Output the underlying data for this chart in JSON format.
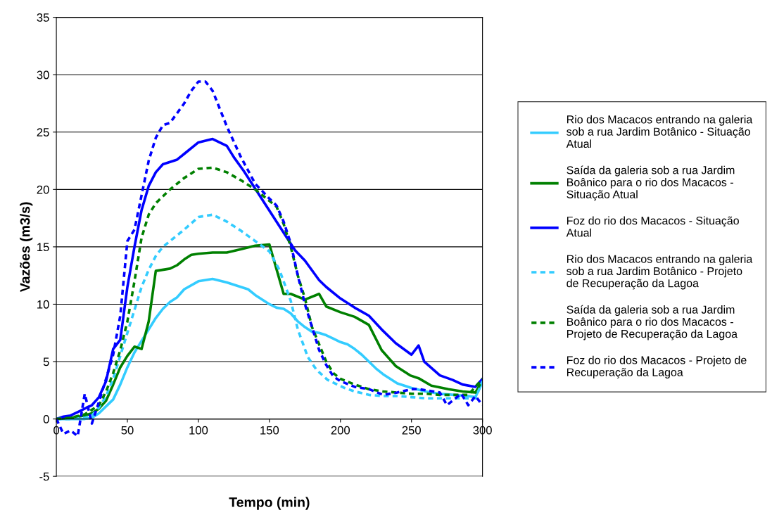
{
  "chart_data": {
    "type": "line",
    "xlabel": "Tempo (min)",
    "ylabel": "Vazões (m3/s)",
    "xlim": [
      0,
      300
    ],
    "ylim": [
      -5,
      35
    ],
    "xticks": [
      0,
      50,
      100,
      150,
      200,
      250,
      300
    ],
    "yticks": [
      -5,
      0,
      5,
      10,
      15,
      20,
      25,
      30,
      35
    ],
    "grid": "y",
    "legend": "right",
    "marker": "none",
    "series": [
      {
        "name": "Rio dos Macacos entrando na galeria sob a rua Jardim Botânico - Situação Atual",
        "color": "#33ccff",
        "line_style": "solid",
        "x": [
          0,
          10,
          20,
          25,
          30,
          35,
          40,
          45,
          50,
          55,
          60,
          65,
          70,
          75,
          80,
          85,
          90,
          100,
          110,
          120,
          130,
          135,
          140,
          150,
          155,
          160,
          165,
          170,
          175,
          180,
          185,
          190,
          195,
          200,
          205,
          210,
          215,
          220,
          225,
          230,
          235,
          240,
          250,
          260,
          270,
          280,
          290,
          295,
          300
        ],
        "values": [
          0,
          0,
          0,
          0.1,
          0.5,
          1.1,
          1.7,
          3,
          4.5,
          5.8,
          6.8,
          7.8,
          8.8,
          9.6,
          10.2,
          10.6,
          11.3,
          12,
          12.2,
          11.9,
          11.5,
          11.3,
          10.8,
          10,
          9.7,
          9.6,
          9.2,
          8.5,
          8,
          7.6,
          7.5,
          7.3,
          7,
          6.7,
          6.5,
          6.1,
          5.6,
          5,
          4.4,
          3.9,
          3.5,
          3.1,
          2.7,
          2.4,
          2.2,
          2.1,
          2,
          1.9,
          3.2
        ]
      },
      {
        "name": "Saída da galeria sob a rua Jardim Boânico para o rio dos Macacos - Situação Atual",
        "color": "#008000",
        "line_style": "solid",
        "x": [
          0,
          10,
          20,
          25,
          30,
          35,
          40,
          45,
          50,
          55,
          60,
          65,
          70,
          80,
          85,
          90,
          95,
          100,
          110,
          120,
          130,
          140,
          150,
          160,
          165,
          175,
          185,
          190,
          200,
          210,
          220,
          229,
          239,
          249,
          255,
          264,
          276,
          286,
          295,
          300
        ],
        "values": [
          0,
          0.1,
          0.3,
          0.5,
          0.9,
          1.6,
          3,
          4.5,
          5.5,
          6.3,
          6.1,
          8.5,
          12.9,
          13.1,
          13.4,
          13.9,
          14.3,
          14.4,
          14.5,
          14.5,
          14.8,
          15.1,
          15.2,
          10.9,
          10.9,
          10.4,
          10.9,
          9.8,
          9.3,
          8.9,
          8.2,
          6,
          4.6,
          3.8,
          3.55,
          2.9,
          2.6,
          2.4,
          2.3,
          3.4
        ]
      },
      {
        "name": "Foz do rio dos Macacos - Situação Atual",
        "color": "#0000ff",
        "line_style": "solid",
        "x": [
          0,
          5,
          10,
          15,
          20,
          25,
          30,
          35,
          40,
          45,
          50,
          55,
          60,
          65,
          70,
          75,
          85,
          90,
          100,
          110,
          120,
          125,
          132,
          168,
          175,
          185,
          190,
          200,
          210,
          220,
          229,
          239,
          250,
          255,
          259,
          270,
          279,
          286,
          295,
          300
        ],
        "values": [
          0,
          0.2,
          0.3,
          0.6,
          0.9,
          1.2,
          1.9,
          3.3,
          6.1,
          6.9,
          11.5,
          15,
          18.2,
          20.3,
          21.5,
          22.2,
          22.6,
          23.1,
          24.1,
          24.4,
          23.8,
          22.8,
          21.6,
          14.7,
          13.8,
          12.1,
          11.5,
          10.5,
          9.7,
          9,
          7.8,
          6.6,
          5.6,
          6.4,
          5,
          3.8,
          3.4,
          3,
          2.8,
          3.5
        ]
      },
      {
        "name": "Rio dos Macacos entrando na galeria sob a rua Jardim Botânico - Projeto de Recuperação da Lagoa",
        "color": "#33ccff",
        "line_style": "dashed",
        "x": [
          0,
          10,
          20,
          25,
          30,
          35,
          40,
          45,
          50,
          55,
          60,
          65,
          70,
          75,
          80,
          90,
          100,
          110,
          120,
          130,
          140,
          150,
          157,
          165,
          170,
          177,
          183,
          191,
          203,
          210,
          220,
          230,
          240,
          250,
          260,
          270,
          280,
          290,
          295,
          300
        ],
        "values": [
          0,
          0,
          0.1,
          0.3,
          1,
          2,
          3.5,
          5.5,
          7.5,
          9.5,
          11.5,
          13,
          14.2,
          15,
          15.5,
          16.5,
          17.6,
          17.8,
          17.2,
          16.4,
          15.5,
          14.6,
          13,
          10.3,
          7.8,
          5.4,
          4.3,
          3.4,
          2.7,
          2.4,
          2.1,
          2,
          2,
          1.9,
          1.8,
          1.8,
          1.8,
          1.8,
          1.8,
          3.3
        ]
      },
      {
        "name": "Saída da galeria sob a rua Jardim Boânico para o rio dos Macacos - Projeto de Recuperação da Lagoa",
        "color": "#008000",
        "line_style": "dashed",
        "x": [
          0,
          10,
          20,
          30,
          35,
          40,
          45,
          50,
          55,
          60,
          65,
          70,
          80,
          90,
          100,
          110,
          120,
          130,
          140,
          150,
          155,
          160,
          165,
          170,
          175,
          180,
          185,
          190,
          195,
          200,
          210,
          220,
          230,
          240,
          250,
          260,
          270,
          280,
          290,
          300
        ],
        "values": [
          0,
          0.1,
          0.4,
          1.2,
          2.4,
          4,
          6,
          8.5,
          12,
          15.8,
          17.8,
          18.8,
          20,
          21,
          21.8,
          21.9,
          21.5,
          20.8,
          20,
          19,
          18.5,
          17,
          15,
          12.5,
          10.5,
          8,
          6.5,
          5,
          4,
          3.5,
          3,
          2.6,
          2.4,
          2.3,
          2.2,
          2.2,
          2.1,
          2.1,
          2.1,
          3.5
        ]
      },
      {
        "name": "Foz do rio dos Macacos - Projeto de Recuperação da Lagoa",
        "color": "#0000ff",
        "line_style": "dashed",
        "x": [
          0,
          5,
          10,
          15,
          20,
          25,
          30,
          35,
          40,
          45,
          50,
          55,
          60,
          65,
          70,
          75,
          80,
          90,
          95,
          100,
          105,
          110,
          120,
          130,
          140,
          150,
          155,
          160,
          165,
          170,
          175,
          180,
          185,
          190,
          195,
          200,
          210,
          220,
          230,
          240,
          250,
          255,
          270,
          275,
          285,
          290,
          295,
          300
        ],
        "values": [
          0,
          -1.3,
          -1,
          -1.5,
          2.2,
          -0.4,
          1.5,
          3.5,
          5.6,
          9,
          15.5,
          16.5,
          19.5,
          22.5,
          24.5,
          25.6,
          25.8,
          27.5,
          28.6,
          29.4,
          29.4,
          28.6,
          25.5,
          22.8,
          20.5,
          19.2,
          18.6,
          17.2,
          15.3,
          12.5,
          10,
          8,
          6,
          4.7,
          3.7,
          3.3,
          2.8,
          2.6,
          2.1,
          2.3,
          2.6,
          2.6,
          2.3,
          1.2,
          2.2,
          1.2,
          2,
          1.2
        ]
      }
    ]
  }
}
